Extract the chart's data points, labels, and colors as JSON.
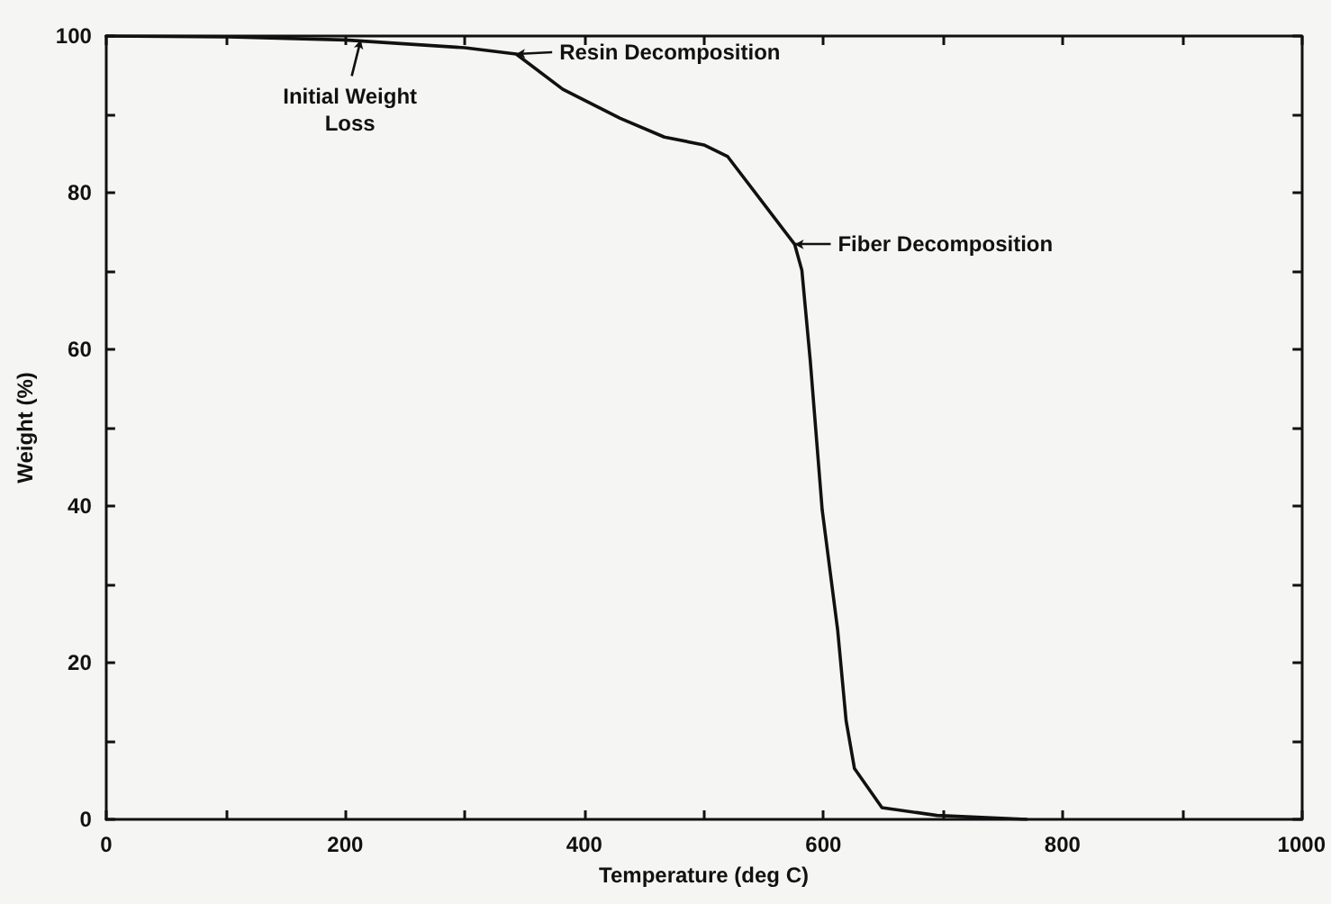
{
  "chart_data": {
    "type": "line",
    "xlabel": "Temperature (deg C)",
    "ylabel": "Weight (%)",
    "xlim": [
      0,
      1000
    ],
    "ylim": [
      0,
      100
    ],
    "xticks": [
      0,
      {
        "value": 100,
        "label": null
      },
      200,
      {
        "value": 300,
        "label": null
      },
      400,
      {
        "value": 500,
        "label": null
      },
      600,
      {
        "value": 700,
        "label": null
      },
      800,
      {
        "value": 900,
        "label": null
      },
      1000
    ],
    "yticks": [
      0,
      {
        "value": 10,
        "label": null
      },
      20,
      {
        "value": 30,
        "label": null
      },
      40,
      {
        "value": 50,
        "label": null
      },
      60,
      {
        "value": 70,
        "label": null
      },
      80,
      {
        "value": 90,
        "label": null
      },
      100
    ],
    "grid": false,
    "marker": "none",
    "line_style": "solid",
    "series": [
      {
        "color": "#111111",
        "x": [
          0,
          100,
          200,
          300,
          343,
          382,
          430,
          467,
          500,
          520,
          553,
          576,
          582,
          589,
          599,
          612,
          619,
          626,
          649,
          695,
          770
        ],
        "values": [
          100,
          99.9,
          99.5,
          98.5,
          97.7,
          93.2,
          89.5,
          87.1,
          86.1,
          84.6,
          78,
          73.4,
          70.1,
          58.6,
          39.5,
          24.1,
          12.6,
          6.5,
          1.5,
          0.5,
          0
        ]
      }
    ],
    "annotations": [
      {
        "text": "Initial Weight\nLoss",
        "x": 213,
        "y": 99.5
      },
      {
        "text": "Resin Decomposition",
        "x": 343,
        "y": 97.7
      },
      {
        "text": "Fiber Decomposition",
        "x": 576,
        "y": 73.4
      }
    ]
  }
}
